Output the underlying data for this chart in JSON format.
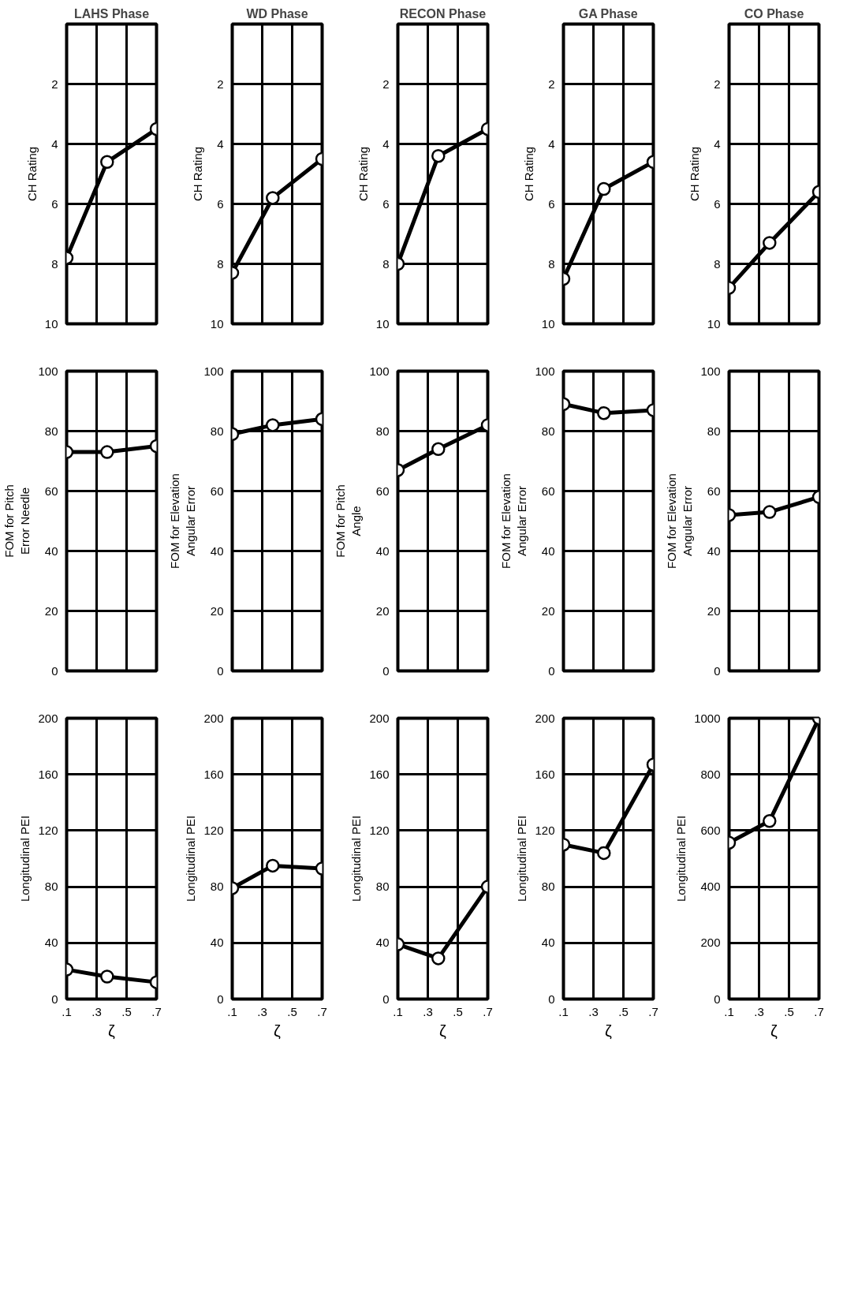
{
  "chart_data": [
    {
      "type": "line",
      "title": "LAHS Phase",
      "ylabel": "CH Rating",
      "x": [
        0.1,
        0.37,
        0.7
      ],
      "values": [
        7.8,
        4.6,
        3.5
      ],
      "color": "#000000",
      "xlim": [
        0.1,
        0.7
      ],
      "xticks": [
        0.1,
        0.3,
        0.5,
        0.7
      ],
      "ylim": [
        10,
        0
      ],
      "yticks": [
        2,
        4,
        6,
        8,
        10
      ],
      "grid": true,
      "marker": "circle",
      "tick_labels": "y"
    },
    {
      "type": "line",
      "title": "WD Phase",
      "ylabel": "CH Rating",
      "x": [
        0.1,
        0.37,
        0.7
      ],
      "values": [
        8.3,
        5.8,
        4.5
      ],
      "color": "#000000",
      "xlim": [
        0.1,
        0.7
      ],
      "xticks": [
        0.1,
        0.3,
        0.5,
        0.7
      ],
      "ylim": [
        10,
        0
      ],
      "yticks": [
        2,
        4,
        6,
        8,
        10
      ],
      "grid": true,
      "marker": "circle",
      "tick_labels": "y"
    },
    {
      "type": "line",
      "title": "RECON Phase",
      "ylabel": "CH Rating",
      "x": [
        0.1,
        0.37,
        0.7
      ],
      "values": [
        8.0,
        4.4,
        3.5
      ],
      "color": "#000000",
      "xlim": [
        0.1,
        0.7
      ],
      "xticks": [
        0.1,
        0.3,
        0.5,
        0.7
      ],
      "ylim": [
        10,
        0
      ],
      "yticks": [
        2,
        4,
        6,
        8,
        10
      ],
      "grid": true,
      "marker": "circle",
      "tick_labels": "y"
    },
    {
      "type": "line",
      "title": "GA Phase",
      "ylabel": "CH Rating",
      "x": [
        0.1,
        0.37,
        0.7
      ],
      "values": [
        8.5,
        5.5,
        4.6
      ],
      "color": "#000000",
      "xlim": [
        0.1,
        0.7
      ],
      "xticks": [
        0.1,
        0.3,
        0.5,
        0.7
      ],
      "ylim": [
        10,
        0
      ],
      "yticks": [
        2,
        4,
        6,
        8,
        10
      ],
      "grid": true,
      "marker": "circle",
      "tick_labels": "y"
    },
    {
      "type": "line",
      "title": "CO Phase",
      "ylabel": "CH Rating",
      "x": [
        0.1,
        0.37,
        0.7
      ],
      "values": [
        8.8,
        7.3,
        5.6
      ],
      "color": "#000000",
      "xlim": [
        0.1,
        0.7
      ],
      "xticks": [
        0.1,
        0.3,
        0.5,
        0.7
      ],
      "ylim": [
        10,
        0
      ],
      "yticks": [
        2,
        4,
        6,
        8,
        10
      ],
      "grid": true,
      "marker": "circle",
      "tick_labels": "y"
    },
    {
      "type": "line",
      "ylabel": "FOM for Pitch\nError Needle",
      "x": [
        0.1,
        0.37,
        0.7
      ],
      "values": [
        73,
        73,
        75
      ],
      "color": "#000000",
      "xlim": [
        0.1,
        0.7
      ],
      "xticks": [
        0.1,
        0.3,
        0.5,
        0.7
      ],
      "ylim": [
        0,
        100
      ],
      "yticks": [
        0,
        20,
        40,
        60,
        80,
        100
      ],
      "grid": true,
      "marker": "circle",
      "tick_labels": "y"
    },
    {
      "type": "line",
      "ylabel": "FOM for Elevation\nAngular Error",
      "x": [
        0.1,
        0.37,
        0.7
      ],
      "values": [
        79,
        82,
        84
      ],
      "color": "#000000",
      "xlim": [
        0.1,
        0.7
      ],
      "xticks": [
        0.1,
        0.3,
        0.5,
        0.7
      ],
      "ylim": [
        0,
        100
      ],
      "yticks": [
        0,
        20,
        40,
        60,
        80,
        100
      ],
      "grid": true,
      "marker": "circle",
      "tick_labels": "y"
    },
    {
      "type": "line",
      "ylabel": "FOM for Pitch\nAngle",
      "x": [
        0.1,
        0.37,
        0.7
      ],
      "values": [
        67,
        74,
        82
      ],
      "color": "#000000",
      "xlim": [
        0.1,
        0.7
      ],
      "xticks": [
        0.1,
        0.3,
        0.5,
        0.7
      ],
      "ylim": [
        0,
        100
      ],
      "yticks": [
        0,
        20,
        40,
        60,
        80,
        100
      ],
      "grid": true,
      "marker": "circle",
      "tick_labels": "y"
    },
    {
      "type": "line",
      "ylabel": "FOM for Elevation\nAngular Error",
      "x": [
        0.1,
        0.37,
        0.7
      ],
      "values": [
        89,
        86,
        87
      ],
      "color": "#000000",
      "xlim": [
        0.1,
        0.7
      ],
      "xticks": [
        0.1,
        0.3,
        0.5,
        0.7
      ],
      "ylim": [
        0,
        100
      ],
      "yticks": [
        0,
        20,
        40,
        60,
        80,
        100
      ],
      "grid": true,
      "marker": "circle",
      "tick_labels": "y"
    },
    {
      "type": "line",
      "ylabel": "FOM for Elevation\nAngular Error",
      "x": [
        0.1,
        0.37,
        0.7
      ],
      "values": [
        52,
        53,
        58
      ],
      "color": "#000000",
      "xlim": [
        0.1,
        0.7
      ],
      "xticks": [
        0.1,
        0.3,
        0.5,
        0.7
      ],
      "ylim": [
        0,
        100
      ],
      "yticks": [
        0,
        20,
        40,
        60,
        80,
        100
      ],
      "grid": true,
      "marker": "circle",
      "tick_labels": "y"
    },
    {
      "type": "line",
      "ylabel": "Longitudinal PEI",
      "xlabel": "ζ",
      "x": [
        0.1,
        0.37,
        0.7
      ],
      "values": [
        21,
        16,
        12
      ],
      "color": "#000000",
      "xlim": [
        0.1,
        0.7
      ],
      "xticks": [
        {
          "value": 0.1,
          "label": ".1"
        },
        {
          "value": 0.3,
          "label": ".3"
        },
        {
          "value": 0.5,
          "label": ".5"
        },
        {
          "value": 0.7,
          "label": ".7"
        }
      ],
      "ylim": [
        0,
        200
      ],
      "yticks": [
        0,
        40,
        80,
        120,
        160,
        200
      ],
      "grid": true,
      "marker": "circle"
    },
    {
      "type": "line",
      "ylabel": "Longitudinal PEI",
      "xlabel": "ζ",
      "x": [
        0.1,
        0.37,
        0.7
      ],
      "values": [
        79,
        95,
        93
      ],
      "color": "#000000",
      "xlim": [
        0.1,
        0.7
      ],
      "xticks": [
        {
          "value": 0.1,
          "label": ".1"
        },
        {
          "value": 0.3,
          "label": ".3"
        },
        {
          "value": 0.5,
          "label": ".5"
        },
        {
          "value": 0.7,
          "label": ".7"
        }
      ],
      "ylim": [
        0,
        200
      ],
      "yticks": [
        0,
        40,
        80,
        120,
        160,
        200
      ],
      "grid": true,
      "marker": "circle"
    },
    {
      "type": "line",
      "ylabel": "Longitudinal PEI",
      "xlabel": "ζ",
      "x": [
        0.1,
        0.37,
        0.7
      ],
      "values": [
        39,
        29,
        80
      ],
      "color": "#000000",
      "xlim": [
        0.1,
        0.7
      ],
      "xticks": [
        {
          "value": 0.1,
          "label": ".1"
        },
        {
          "value": 0.3,
          "label": ".3"
        },
        {
          "value": 0.5,
          "label": ".5"
        },
        {
          "value": 0.7,
          "label": ".7"
        }
      ],
      "ylim": [
        0,
        200
      ],
      "yticks": [
        0,
        40,
        80,
        120,
        160,
        200
      ],
      "grid": true,
      "marker": "circle"
    },
    {
      "type": "line",
      "ylabel": "Longitudinal PEI",
      "xlabel": "ζ",
      "x": [
        0.1,
        0.37,
        0.7
      ],
      "values": [
        110,
        104,
        167
      ],
      "color": "#000000",
      "xlim": [
        0.1,
        0.7
      ],
      "xticks": [
        {
          "value": 0.1,
          "label": ".1"
        },
        {
          "value": 0.3,
          "label": ".3"
        },
        {
          "value": 0.5,
          "label": ".5"
        },
        {
          "value": 0.7,
          "label": ".7"
        }
      ],
      "ylim": [
        0,
        200
      ],
      "yticks": [
        0,
        40,
        80,
        120,
        160,
        200
      ],
      "grid": true,
      "marker": "circle"
    },
    {
      "type": "line",
      "ylabel": "Longitudinal PEI",
      "xlabel": "ζ",
      "x": [
        0.1,
        0.37,
        0.7
      ],
      "values": [
        557,
        634,
        1000
      ],
      "color": "#000000",
      "xlim": [
        0.1,
        0.7
      ],
      "xticks": [
        {
          "value": 0.1,
          "label": ".1"
        },
        {
          "value": 0.3,
          "label": ".3"
        },
        {
          "value": 0.5,
          "label": ".5"
        },
        {
          "value": 0.7,
          "label": ".7"
        }
      ],
      "ylim": [
        0,
        1000
      ],
      "yticks": [
        0,
        200,
        400,
        600,
        800,
        1000
      ],
      "grid": true,
      "marker": "circle"
    }
  ]
}
